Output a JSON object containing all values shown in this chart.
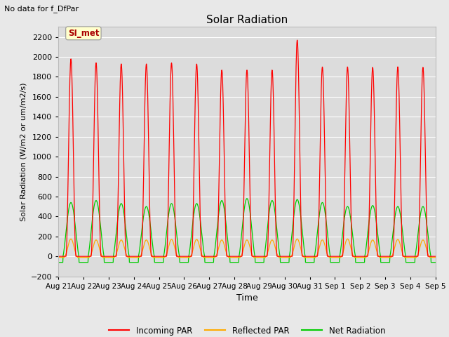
{
  "title": "Solar Radiation",
  "subtitle": "No data for f_DfPar",
  "ylabel": "Solar Radiation (W/m2 or um/m2/s)",
  "xlabel": "Time",
  "ylim": [
    -200,
    2300
  ],
  "yticks": [
    -200,
    0,
    200,
    400,
    600,
    800,
    1000,
    1200,
    1400,
    1600,
    1800,
    2000,
    2200
  ],
  "xtick_labels": [
    "Aug 21",
    "Aug 22",
    "Aug 23",
    "Aug 24",
    "Aug 25",
    "Aug 26",
    "Aug 27",
    "Aug 28",
    "Aug 29",
    "Aug 30",
    "Aug 31",
    "Sep 1",
    "Sep 2",
    "Sep 3",
    "Sep 4",
    "Sep 5"
  ],
  "legend_labels": [
    "Incoming PAR",
    "Reflected PAR",
    "Net Radiation"
  ],
  "legend_colors": [
    "#ff0000",
    "#ffaa00",
    "#00cc00"
  ],
  "line_colors": [
    "#ff0000",
    "#ffaa00",
    "#00cc00"
  ],
  "annotation_box_text": "SI_met",
  "annotation_box_color": "#ffffcc",
  "annotation_text_color": "#aa0000",
  "fig_bg_color": "#e8e8e8",
  "plot_bg_color": "#dcdcdc",
  "n_days": 15,
  "incoming_peak_values": [
    1980,
    1940,
    1930,
    1930,
    1940,
    1930,
    1870,
    1870,
    1870,
    2170,
    1900,
    1900,
    1895,
    1900,
    1895
  ],
  "net_peak_values": [
    540,
    560,
    530,
    500,
    530,
    530,
    560,
    580,
    560,
    570,
    540,
    500,
    510,
    500,
    500
  ],
  "reflected_peak_values": [
    175,
    165,
    165,
    165,
    170,
    170,
    165,
    165,
    165,
    175,
    165,
    175,
    165,
    170,
    165
  ]
}
